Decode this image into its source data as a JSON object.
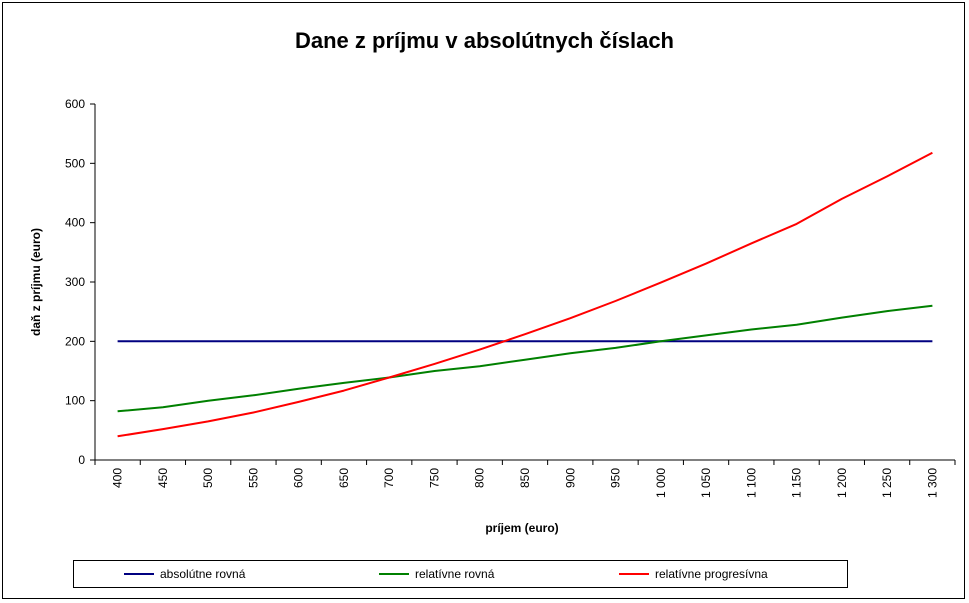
{
  "chart_data": {
    "type": "line",
    "title": "Dane z príjmu v absolútnych číslach",
    "xlabel": "príjem (euro)",
    "ylabel": "daň z príjmu (euro)",
    "x": [
      400,
      450,
      500,
      550,
      600,
      650,
      700,
      750,
      800,
      850,
      900,
      950,
      1000,
      1050,
      1100,
      1150,
      1200,
      1250,
      1300
    ],
    "x_tick_labels": [
      "400",
      "450",
      "500",
      "550",
      "600",
      "650",
      "700",
      "750",
      "800",
      "850",
      "900",
      "950",
      "1 000",
      "1 050",
      "1 100",
      "1 150",
      "1 200",
      "1 250",
      "1 300"
    ],
    "y_ticks": [
      0,
      100,
      200,
      300,
      400,
      500,
      600
    ],
    "ylim": [
      0,
      600
    ],
    "legend_position": "bottom",
    "grid": false,
    "series": [
      {
        "name": "absolútne rovná",
        "color": "#000080",
        "values": [
          200,
          200,
          200,
          200,
          200,
          200,
          200,
          200,
          200,
          200,
          200,
          200,
          200,
          200,
          200,
          200,
          200,
          200,
          200
        ]
      },
      {
        "name": "relatívne rovná",
        "color": "#008000",
        "values": [
          82,
          89,
          100,
          109,
          120,
          130,
          139,
          150,
          158,
          169,
          180,
          189,
          200,
          210,
          220,
          228,
          240,
          251,
          260
        ]
      },
      {
        "name": "relatívne progresívna",
        "color": "#ff0000",
        "values": [
          40,
          52,
          65,
          80,
          98,
          117,
          139,
          162,
          186,
          212,
          239,
          268,
          299,
          331,
          365,
          398,
          440,
          478,
          518
        ]
      }
    ]
  }
}
